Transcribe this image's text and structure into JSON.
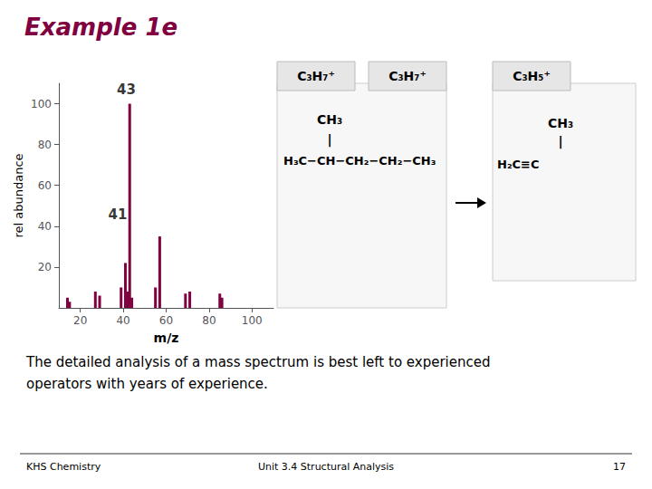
{
  "chart_data": {
    "type": "bar",
    "title": "Example 1e",
    "color": "#800040",
    "xlabel": "m/z",
    "ylabel": "rel abundance",
    "xlim": [
      10,
      110
    ],
    "ylim": [
      0,
      110
    ],
    "xticks": [
      20,
      40,
      60,
      80,
      100
    ],
    "yticks": [
      20,
      40,
      60,
      80,
      100
    ],
    "grid": false,
    "x": [
      14,
      15,
      27,
      29,
      39,
      41,
      42,
      43,
      44,
      55,
      57,
      69,
      71,
      85,
      86
    ],
    "values": [
      5,
      3,
      8,
      6,
      10,
      22,
      8,
      100,
      5,
      10,
      35,
      7,
      8,
      7,
      5
    ],
    "annotations": [
      {
        "text": "43",
        "x": 37,
        "y": 103
      },
      {
        "text": "41",
        "x": 33,
        "y": 42
      }
    ],
    "structures": [
      {
        "headers": [
          "C₃H₇⁺",
          "C₃H₇⁺"
        ],
        "lines": [
          "CH₃",
          "|",
          "H₃C−CH−CH₂−CH₂−CH₃"
        ]
      },
      {
        "headers": [
          "C₃H₅⁺"
        ],
        "lines": [
          "CH₃",
          "|",
          "H₂C≡C"
        ]
      }
    ],
    "body_text": [
      "The detailed analysis of a mass spectrum is best left to experienced",
      "operators with years of experience."
    ],
    "footer": [
      "KHS Chemistry",
      "Unit 3.4 Structural Analysis",
      "17"
    ]
  }
}
